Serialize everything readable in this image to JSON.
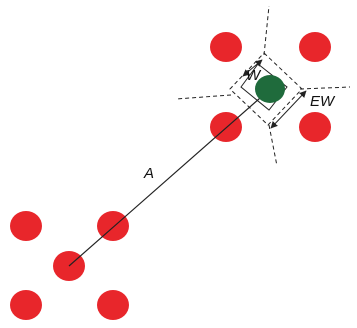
{
  "colors": {
    "target_dot": "#e8262b",
    "selected_dot": "#1f6b3c",
    "line": "#222222"
  },
  "labels": {
    "amplitude": "A",
    "width": "W",
    "effective_width": "EW"
  }
}
